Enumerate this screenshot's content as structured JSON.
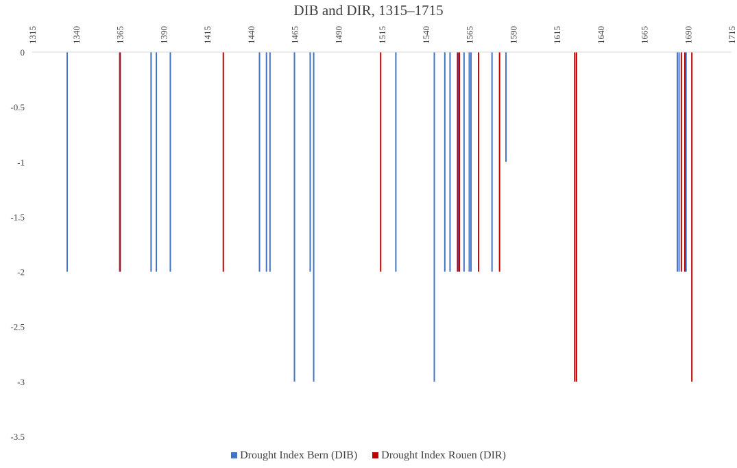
{
  "chart_data": {
    "type": "bar",
    "title": "DIB and DIR, 1315–1715",
    "xlabel": "",
    "ylabel": "",
    "x_range": [
      1315,
      1715
    ],
    "x_ticks": [
      "1315",
      "1340",
      "1365",
      "1390",
      "1415",
      "1440",
      "1465",
      "1490",
      "1515",
      "1540",
      "1565",
      "1590",
      "1615",
      "1640",
      "1665",
      "1690",
      "1715"
    ],
    "y_range": [
      -3.5,
      0
    ],
    "y_ticks": [
      "0",
      "-0.5",
      "-1",
      "-1.5",
      "-2",
      "-2.5",
      "-3",
      "-3.5"
    ],
    "grid": false,
    "legend_position": "bottom",
    "series": [
      {
        "name": "Drought Index Bern (DIB)",
        "color": "#4472C4",
        "points": [
          {
            "x": 1335,
            "y": -2
          },
          {
            "x": 1365,
            "y": -2
          },
          {
            "x": 1383,
            "y": -2
          },
          {
            "x": 1386,
            "y": -2
          },
          {
            "x": 1394,
            "y": -2
          },
          {
            "x": 1445,
            "y": -2
          },
          {
            "x": 1449,
            "y": -2
          },
          {
            "x": 1451,
            "y": -2
          },
          {
            "x": 1465,
            "y": -3
          },
          {
            "x": 1474,
            "y": -2
          },
          {
            "x": 1476,
            "y": -3
          },
          {
            "x": 1523,
            "y": -2
          },
          {
            "x": 1545,
            "y": -3
          },
          {
            "x": 1551,
            "y": -2
          },
          {
            "x": 1554,
            "y": -2
          },
          {
            "x": 1559,
            "y": -2
          },
          {
            "x": 1562,
            "y": -2
          },
          {
            "x": 1565,
            "y": -2
          },
          {
            "x": 1566,
            "y": -2
          },
          {
            "x": 1578,
            "y": -2
          },
          {
            "x": 1586,
            "y": -1
          },
          {
            "x": 1684,
            "y": -2
          },
          {
            "x": 1685,
            "y": -2
          },
          {
            "x": 1689,
            "y": -2
          }
        ]
      },
      {
        "name": "Drought Index Rouen (DIR)",
        "color": "#C00000",
        "points": [
          {
            "x": 1365,
            "y": -2
          },
          {
            "x": 1424,
            "y": -2
          },
          {
            "x": 1514,
            "y": -2
          },
          {
            "x": 1558,
            "y": -2
          },
          {
            "x": 1559,
            "y": -2
          },
          {
            "x": 1570,
            "y": -2
          },
          {
            "x": 1582,
            "y": -2
          },
          {
            "x": 1625,
            "y": -3
          },
          {
            "x": 1626,
            "y": -3
          },
          {
            "x": 1686,
            "y": -2
          },
          {
            "x": 1688,
            "y": -2
          },
          {
            "x": 1692,
            "y": -3
          }
        ]
      }
    ]
  }
}
